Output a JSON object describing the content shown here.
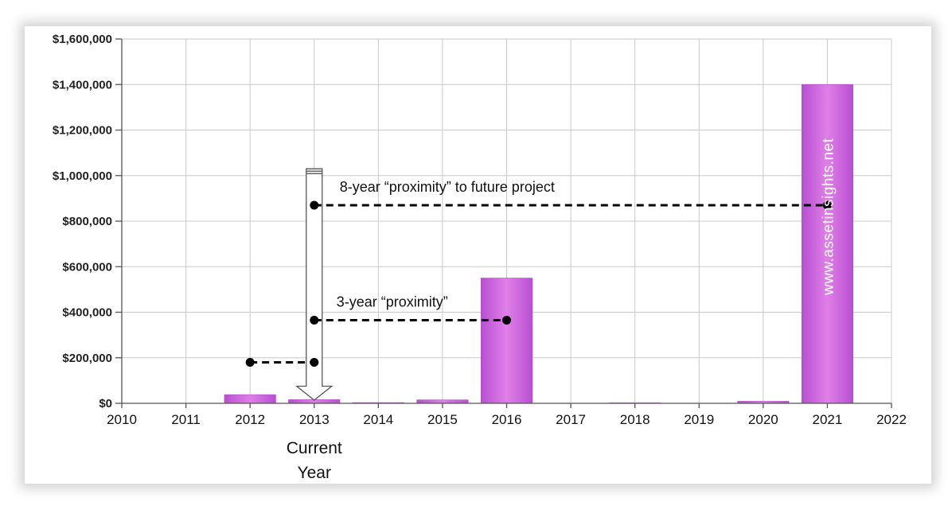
{
  "chart_data": {
    "type": "bar",
    "x": [
      2012,
      2013,
      2014,
      2015,
      2016,
      2017,
      2018,
      2019,
      2020,
      2021
    ],
    "values": [
      38000,
      16000,
      3000,
      15000,
      550000,
      0,
      2000,
      0,
      9000,
      1400000
    ],
    "xlim": [
      2010,
      2022
    ],
    "ylim": [
      0,
      1600000
    ],
    "x_ticks": [
      "2010",
      "2011",
      "2012",
      "2013",
      "2014",
      "2015",
      "2016",
      "2017",
      "2018",
      "2019",
      "2020",
      "2021",
      "2022"
    ],
    "y_ticks": [
      "$0",
      "$200,000",
      "$400,000",
      "$600,000",
      "$800,000",
      "$1,000,000",
      "$1,200,000",
      "$1,400,000",
      "$1,600,000"
    ],
    "grid": true,
    "bar_color": "#cc66dd",
    "annotations": {
      "current_year_line1": "Current",
      "current_year_line2": "Year",
      "long_label": "8-year “proximity” to future project",
      "short_label": "3-year “proximity”",
      "watermark": "www.assetinsights.net"
    }
  }
}
